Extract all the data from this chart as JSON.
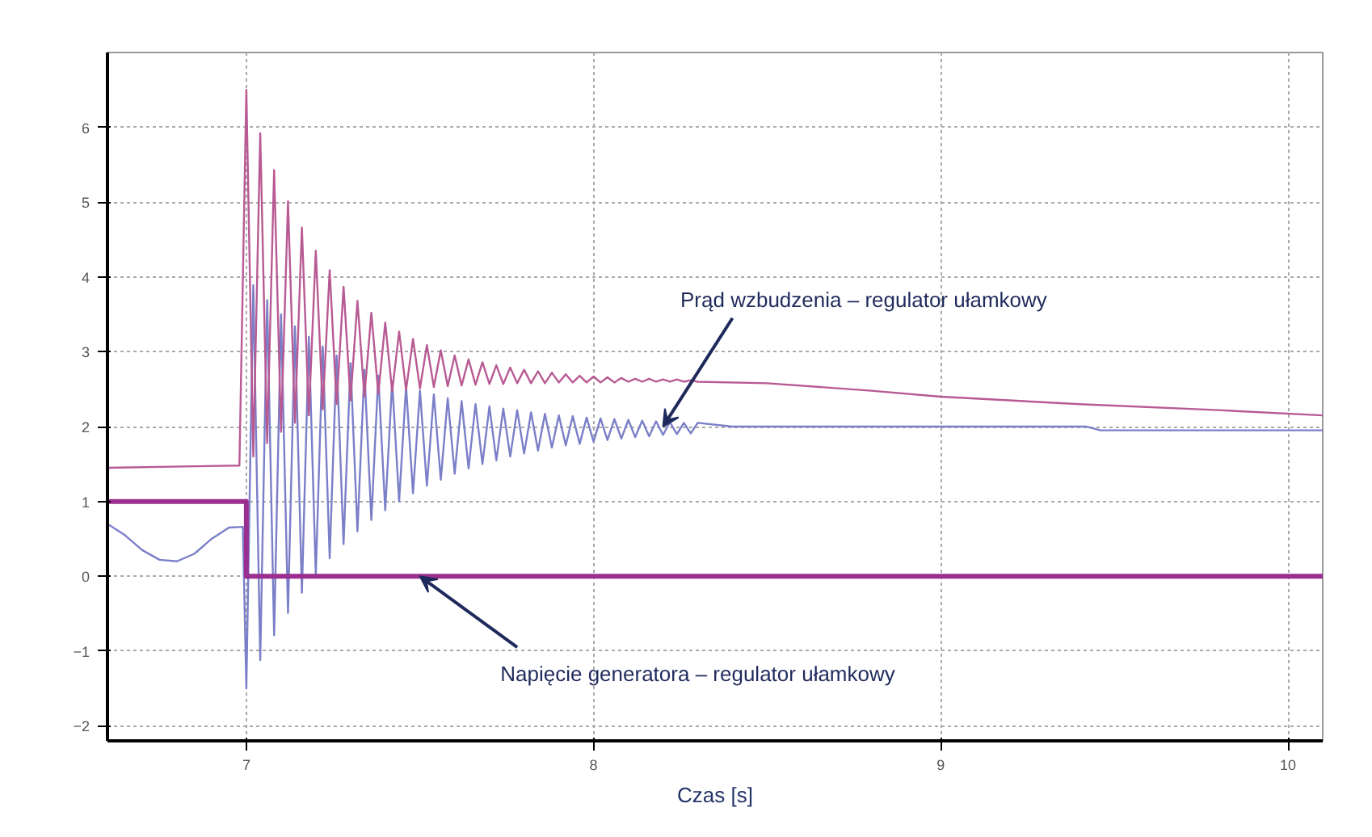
{
  "chart_data": {
    "type": "line",
    "xlabel": "Czas [s]",
    "xlim": [
      6.6,
      10.1
    ],
    "ylim": [
      -2.2,
      7.0
    ],
    "xticks": [
      7,
      8,
      9,
      10
    ],
    "yticks": [
      -2,
      -1,
      0,
      1,
      2,
      3,
      4,
      5,
      6
    ],
    "grid": true,
    "marker": "none",
    "line_style": "solid",
    "series": [
      {
        "color": "#7a7fc8",
        "x": [
          6.6,
          6.65,
          6.7,
          6.75,
          6.8,
          6.85,
          6.9,
          6.95,
          6.99,
          7.0,
          7.02,
          7.04,
          7.06,
          7.08,
          7.1,
          7.12,
          7.14,
          7.16,
          7.18,
          7.2,
          7.22,
          7.24,
          7.26,
          7.28,
          7.3,
          7.32,
          7.34,
          7.36,
          7.38,
          7.4,
          7.42,
          7.44,
          7.46,
          7.48,
          7.5,
          7.52,
          7.54,
          7.56,
          7.58,
          7.6,
          7.62,
          7.64,
          7.66,
          7.68,
          7.7,
          7.72,
          7.74,
          7.76,
          7.78,
          7.8,
          7.82,
          7.84,
          7.86,
          7.88,
          7.9,
          7.92,
          7.94,
          7.96,
          7.98,
          8.0,
          8.02,
          8.04,
          8.06,
          8.08,
          8.1,
          8.12,
          8.14,
          8.16,
          8.18,
          8.2,
          8.22,
          8.24,
          8.26,
          8.28,
          8.3,
          8.4,
          9.42,
          9.46,
          10.1
        ],
        "values": [
          0.7,
          0.55,
          0.35,
          0.22,
          0.2,
          0.3,
          0.5,
          0.65,
          0.66,
          -1.5,
          3.89,
          -1.12,
          3.69,
          -0.79,
          3.5,
          -0.49,
          3.34,
          -0.22,
          3.2,
          0.02,
          3.07,
          0.24,
          2.95,
          0.43,
          2.85,
          0.6,
          2.76,
          0.75,
          2.68,
          0.88,
          2.6,
          1.0,
          2.54,
          1.11,
          2.48,
          1.21,
          2.43,
          1.29,
          2.38,
          1.37,
          2.34,
          1.44,
          2.3,
          1.5,
          2.27,
          1.55,
          2.24,
          1.6,
          2.22,
          1.64,
          2.19,
          1.68,
          2.17,
          1.72,
          2.15,
          1.75,
          2.14,
          1.77,
          2.12,
          1.8,
          2.11,
          1.82,
          2.1,
          1.84,
          2.09,
          1.86,
          2.08,
          1.87,
          2.07,
          1.89,
          2.06,
          1.9,
          2.05,
          1.91,
          2.05,
          2.0,
          2.0,
          1.95,
          1.95
        ]
      },
      {
        "color": "#b85a93",
        "x": [
          6.6,
          6.98,
          7.0,
          7.02,
          7.04,
          7.06,
          7.08,
          7.1,
          7.12,
          7.14,
          7.16,
          7.18,
          7.2,
          7.22,
          7.24,
          7.26,
          7.28,
          7.3,
          7.32,
          7.34,
          7.36,
          7.38,
          7.4,
          7.42,
          7.44,
          7.46,
          7.48,
          7.5,
          7.52,
          7.54,
          7.56,
          7.58,
          7.6,
          7.62,
          7.64,
          7.66,
          7.68,
          7.7,
          7.72,
          7.74,
          7.76,
          7.78,
          7.8,
          7.82,
          7.84,
          7.86,
          7.88,
          7.9,
          7.92,
          7.94,
          7.96,
          7.98,
          8.0,
          8.02,
          8.04,
          8.06,
          8.08,
          8.1,
          8.12,
          8.14,
          8.16,
          8.18,
          8.2,
          8.22,
          8.24,
          8.26,
          8.28,
          8.3,
          8.5,
          8.8,
          9.0,
          9.4,
          9.8,
          10.1
        ],
        "values": [
          1.45,
          1.48,
          6.5,
          1.6,
          5.92,
          1.78,
          5.43,
          1.93,
          5.01,
          2.05,
          4.66,
          2.15,
          4.35,
          2.23,
          4.09,
          2.3,
          3.87,
          2.35,
          3.68,
          2.4,
          3.52,
          2.44,
          3.39,
          2.47,
          3.27,
          2.49,
          3.17,
          2.51,
          3.09,
          2.53,
          3.02,
          2.54,
          2.95,
          2.55,
          2.9,
          2.56,
          2.86,
          2.57,
          2.82,
          2.57,
          2.79,
          2.58,
          2.76,
          2.58,
          2.74,
          2.58,
          2.72,
          2.59,
          2.7,
          2.59,
          2.68,
          2.59,
          2.67,
          2.59,
          2.66,
          2.59,
          2.65,
          2.6,
          2.64,
          2.6,
          2.64,
          2.6,
          2.63,
          2.6,
          2.63,
          2.6,
          2.62,
          2.6,
          2.58,
          2.48,
          2.4,
          2.3,
          2.22,
          2.15
        ]
      },
      {
        "color": "#9b2f8f",
        "x": [
          6.6,
          7.0,
          7.0,
          10.1
        ],
        "values": [
          1,
          1,
          0,
          0
        ]
      }
    ],
    "annotations": [
      {
        "text": "Prąd wzbudzenia – regulator ułamkowy",
        "x": 8.2,
        "y": 2.0
      },
      {
        "text": "Napięcie generatora – regulator ułamkowy",
        "x": 7.5,
        "y": 0
      }
    ]
  }
}
